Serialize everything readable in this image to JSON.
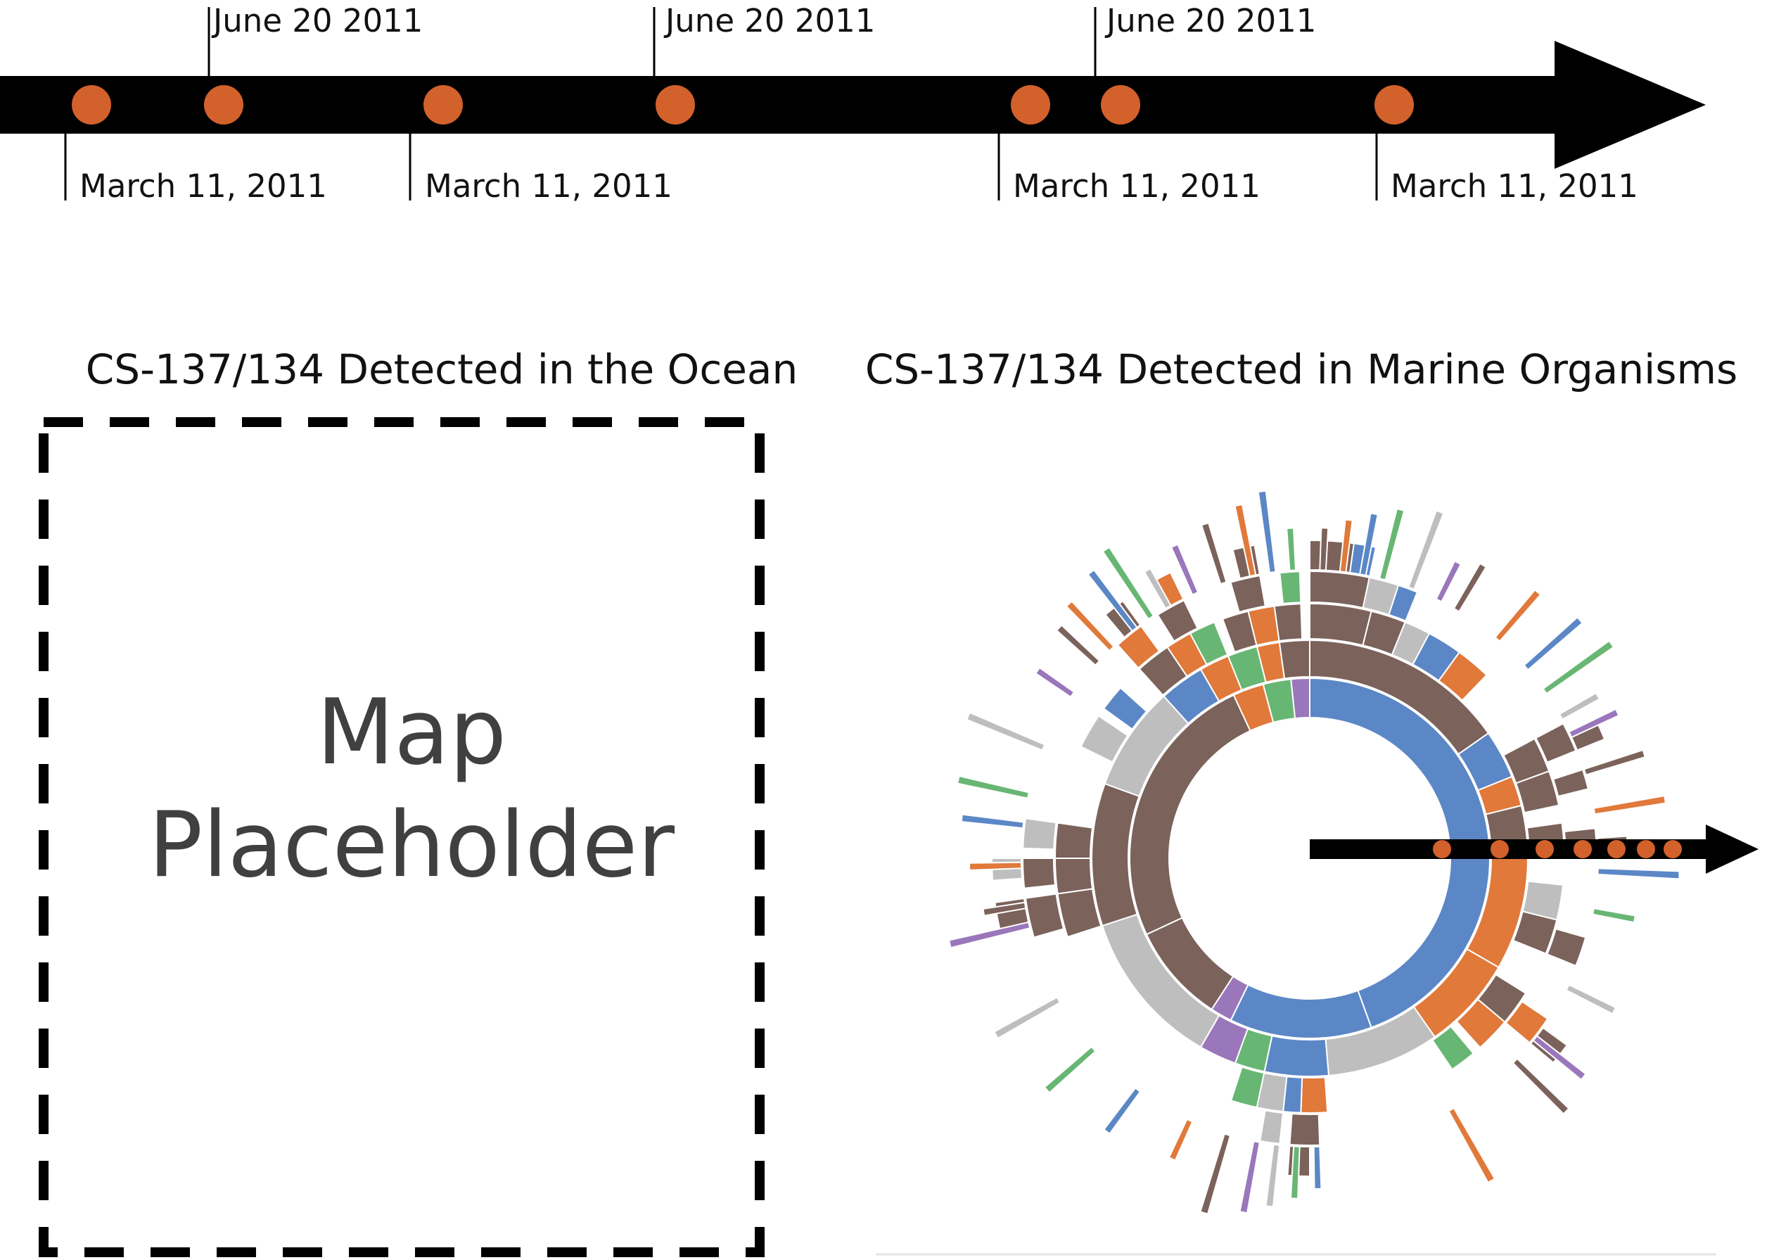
{
  "timeline": {
    "events": [
      {
        "label": "March 11, 2011",
        "placement": "below"
      },
      {
        "label": "June 20 2011",
        "placement": "above"
      },
      {
        "label": "March 11, 2011",
        "placement": "below"
      },
      {
        "label": "June 20 2011",
        "placement": "above"
      },
      {
        "label": "March 11, 2011",
        "placement": "below"
      },
      {
        "label": "June 20 2011",
        "placement": "above"
      },
      {
        "label": "March 11, 2011",
        "placement": "below"
      }
    ],
    "dot_color": "#d2612c",
    "axis_color": "#000000"
  },
  "panels": {
    "ocean": {
      "title": "CS-137/134  Detected in the Ocean",
      "placeholder_line1": "Map",
      "placeholder_line2": "Placeholder"
    },
    "organisms": {
      "title": "CS-137/134  Detected in Marine Organisms"
    }
  },
  "colors": {
    "blue": "#5b87c6",
    "brown": "#7b625b",
    "gray": "#bebebe",
    "orange": "#e0793a",
    "green": "#68b673",
    "purple": "#9a77bb"
  },
  "icons": {
    "timeline_arrow": "arrow-right-icon",
    "inset_arrow": "arrow-right-icon"
  }
}
